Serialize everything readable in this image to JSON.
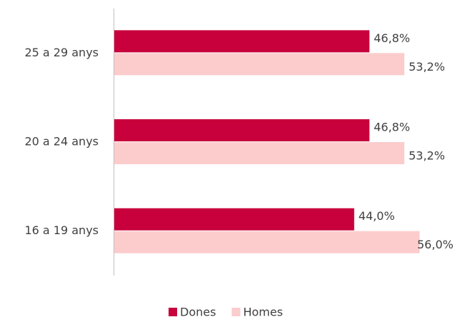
{
  "chart_data": {
    "type": "bar",
    "orientation": "horizontal",
    "categories": [
      "25 a 29 anys",
      "20 a 24 anys",
      "16 a 19 anys"
    ],
    "series": [
      {
        "name": "Dones",
        "color": "#c8003c",
        "values": [
          46.8,
          46.8,
          44.0
        ],
        "value_labels": [
          "46,8%",
          "46,8%",
          "44,0%"
        ]
      },
      {
        "name": "Homes",
        "color": "#fccccc",
        "values": [
          53.2,
          53.2,
          56.0
        ],
        "value_labels": [
          "53,2%",
          "53,2%",
          "56,0%"
        ]
      }
    ],
    "xlim": [
      0,
      60
    ],
    "legend": "bottom"
  }
}
